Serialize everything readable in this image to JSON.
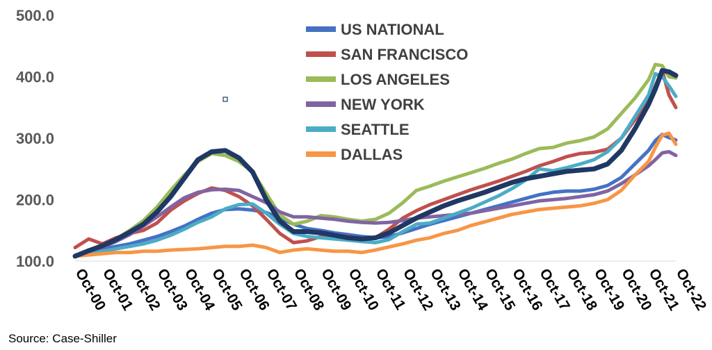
{
  "source_note": "Source: Case-Shiller",
  "chart_data": {
    "type": "line",
    "title": "",
    "xlabel": "",
    "ylabel": "",
    "ylim": [
      100,
      500
    ],
    "yticks": [
      "100.0",
      "200.0",
      "300.0",
      "400.0",
      "500.0"
    ],
    "x": [
      2000.75,
      2001.25,
      2001.75,
      2002.25,
      2002.75,
      2003.25,
      2003.75,
      2004.25,
      2004.75,
      2005.25,
      2005.75,
      2006.25,
      2006.75,
      2007.25,
      2007.75,
      2008.25,
      2008.75,
      2009.25,
      2009.75,
      2010.25,
      2010.75,
      2011.25,
      2011.75,
      2012.25,
      2012.75,
      2013.25,
      2013.75,
      2014.25,
      2014.75,
      2015.25,
      2015.75,
      2016.25,
      2016.75,
      2017.25,
      2017.75,
      2018.25,
      2018.75,
      2019.25,
      2019.75,
      2020.25,
      2020.75,
      2021.25,
      2021.75,
      2022.0,
      2022.25,
      2022.5,
      2022.75
    ],
    "xtick_labels": [
      "Oct-00",
      "Oct-01",
      "Oct-02",
      "Oct-03",
      "Oct-04",
      "Oct-05",
      "Oct-06",
      "Oct-07",
      "Oct-08",
      "Oct-09",
      "Oct-10",
      "Oct-11",
      "Oct-12",
      "Oct-13",
      "Oct-14",
      "Oct-15",
      "Oct-16",
      "Oct-17",
      "Oct-18",
      "Oct-19",
      "Oct-20",
      "Oct-21",
      "Oct-22"
    ],
    "legend": {
      "placement": "top-center"
    },
    "series": [
      {
        "name": "US NATIONAL",
        "color": "#4472C4",
        "width": 5,
        "values": [
          108,
          114,
          119,
          124,
          128,
          134,
          140,
          148,
          157,
          168,
          178,
          184,
          185,
          183,
          179,
          170,
          160,
          153,
          150,
          146,
          143,
          140,
          138,
          140,
          146,
          153,
          160,
          166,
          172,
          178,
          184,
          190,
          196,
          202,
          208,
          212,
          214,
          214,
          217,
          223,
          236,
          258,
          280,
          296,
          306,
          301,
          297
        ]
      },
      {
        "name": "SAN FRANCISCO",
        "color": "#C0504D",
        "width": 5,
        "values": [
          122,
          136,
          128,
          138,
          145,
          150,
          162,
          183,
          198,
          210,
          219,
          215,
          205,
          190,
          168,
          145,
          130,
          133,
          140,
          142,
          140,
          136,
          138,
          152,
          170,
          182,
          192,
          200,
          208,
          216,
          223,
          230,
          238,
          246,
          255,
          262,
          270,
          275,
          277,
          282,
          300,
          330,
          360,
          385,
          410,
          370,
          350
        ]
      },
      {
        "name": "LOS ANGELES",
        "color": "#9BBB59",
        "width": 5,
        "values": [
          108,
          115,
          124,
          136,
          150,
          166,
          188,
          215,
          240,
          262,
          275,
          272,
          262,
          245,
          210,
          175,
          160,
          165,
          174,
          172,
          168,
          165,
          168,
          178,
          195,
          215,
          222,
          230,
          237,
          244,
          251,
          259,
          266,
          275,
          283,
          285,
          292,
          296,
          302,
          315,
          340,
          365,
          395,
          420,
          418,
          400,
          398
        ]
      },
      {
        "name": "NEW YORK",
        "color": "#8064A2",
        "width": 5,
        "values": [
          108,
          115,
          122,
          132,
          143,
          157,
          172,
          188,
          203,
          212,
          216,
          217,
          215,
          205,
          195,
          180,
          172,
          172,
          170,
          168,
          165,
          163,
          162,
          163,
          166,
          170,
          172,
          174,
          176,
          178,
          182,
          186,
          190,
          194,
          198,
          200,
          202,
          205,
          208,
          214,
          226,
          240,
          255,
          265,
          276,
          278,
          272
        ]
      },
      {
        "name": "SEATTLE",
        "color": "#4BACC6",
        "width": 5,
        "values": [
          108,
          112,
          116,
          120,
          124,
          128,
          134,
          142,
          152,
          163,
          172,
          185,
          192,
          193,
          178,
          160,
          145,
          140,
          138,
          136,
          134,
          132,
          130,
          135,
          148,
          160,
          162,
          170,
          178,
          186,
          196,
          206,
          218,
          232,
          250,
          247,
          252,
          258,
          265,
          278,
          300,
          335,
          370,
          405,
          400,
          385,
          368
        ]
      },
      {
        "name": "DALLAS",
        "color": "#F79646",
        "width": 5,
        "values": [
          108,
          110,
          112,
          114,
          114,
          116,
          116,
          118,
          119,
          120,
          122,
          124,
          124,
          126,
          122,
          114,
          118,
          120,
          118,
          116,
          116,
          114,
          118,
          123,
          128,
          134,
          138,
          145,
          150,
          158,
          164,
          170,
          176,
          180,
          184,
          186,
          188,
          190,
          194,
          200,
          215,
          240,
          262,
          285,
          305,
          308,
          290
        ]
      },
      {
        "name": "",
        "color": "#1F3864",
        "width": 7,
        "values": [
          108,
          117,
          125,
          135,
          147,
          160,
          180,
          205,
          235,
          265,
          278,
          280,
          268,
          245,
          200,
          165,
          148,
          148,
          146,
          142,
          138,
          136,
          138,
          146,
          158,
          170,
          180,
          190,
          198,
          205,
          212,
          220,
          228,
          234,
          238,
          242,
          246,
          248,
          250,
          258,
          280,
          315,
          355,
          380,
          410,
          408,
          402
        ]
      }
    ],
    "grid": false
  }
}
